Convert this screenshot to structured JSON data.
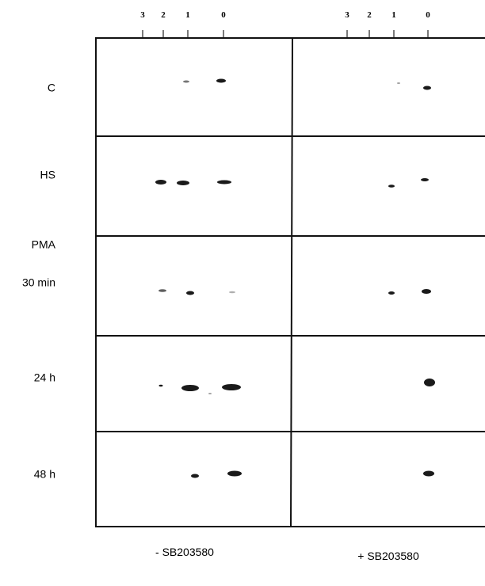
{
  "lanes": [
    {
      "ticks": [
        "3",
        "2",
        "1",
        "0"
      ]
    },
    {
      "ticks": [
        "3",
        "2",
        "1",
        "0"
      ]
    }
  ],
  "rows": [
    "C",
    "HS",
    "PMA",
    "30 min",
    "24 h",
    "48 h"
  ],
  "conditions": [
    "- SB203580",
    "+ SB203580"
  ]
}
